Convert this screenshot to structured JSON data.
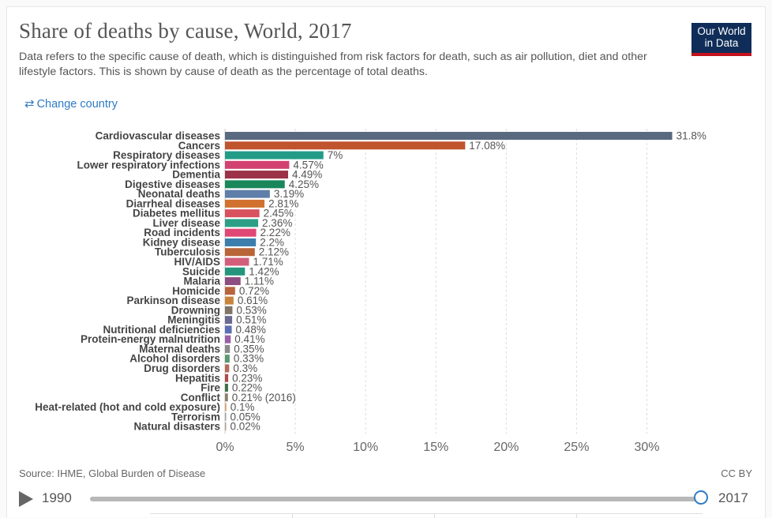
{
  "header": {
    "title": "Share of deaths by cause, World, 2017",
    "subtitle": "Data refers to the specific cause of death, which is distinguished from risk factors for death, such as air pollution, diet and other lifestyle factors. This is shown by cause of death as the percentage of total deaths.",
    "logo_line1": "Our World",
    "logo_line2": "in Data"
  },
  "controls": {
    "change_country_icon": "swap-arrows-icon",
    "change_country_label": "Change country",
    "link_color": "#2e7bc4"
  },
  "footer": {
    "source": "Source: IHME, Global Burden of Disease",
    "license": "CC BY"
  },
  "timeline": {
    "start_year": "1990",
    "end_year": "2017",
    "position": 1.0
  },
  "chart_data": {
    "type": "bar",
    "orientation": "horizontal",
    "title": "Share of deaths by cause, World, 2017",
    "xlim": [
      0,
      32
    ],
    "x_ticks": [
      0,
      5,
      10,
      15,
      20,
      25,
      30
    ],
    "x_tick_labels": [
      "0%",
      "5%",
      "10%",
      "15%",
      "20%",
      "25%",
      "30%"
    ],
    "grid": "vertical dashed",
    "categories": [
      "Cardiovascular diseases",
      "Cancers",
      "Respiratory diseases",
      "Lower respiratory infections",
      "Dementia",
      "Digestive diseases",
      "Neonatal deaths",
      "Diarrheal diseases",
      "Diabetes mellitus",
      "Liver disease",
      "Road incidents",
      "Kidney disease",
      "Tuberculosis",
      "HIV/AIDS",
      "Suicide",
      "Malaria",
      "Homicide",
      "Parkinson disease",
      "Drowning",
      "Meningitis",
      "Nutritional deficiencies",
      "Protein-energy malnutrition",
      "Maternal deaths",
      "Alcohol disorders",
      "Drug disorders",
      "Hepatitis",
      "Fire",
      "Conflict",
      "Heat-related (hot and cold exposure)",
      "Terrorism",
      "Natural disasters"
    ],
    "values": [
      31.8,
      17.08,
      7,
      4.57,
      4.49,
      4.25,
      3.19,
      2.81,
      2.45,
      2.36,
      2.22,
      2.2,
      2.12,
      1.71,
      1.42,
      1.11,
      0.72,
      0.61,
      0.53,
      0.51,
      0.48,
      0.41,
      0.35,
      0.33,
      0.3,
      0.23,
      0.22,
      0.21,
      0.1,
      0.05,
      0.02
    ],
    "value_labels": [
      "31.8%",
      "17.08%",
      "7%",
      "4.57%",
      "4.49%",
      "4.25%",
      "3.19%",
      "2.81%",
      "2.45%",
      "2.36%",
      "2.22%",
      "2.2%",
      "2.12%",
      "1.71%",
      "1.42%",
      "1.11%",
      "0.72%",
      "0.61%",
      "0.53%",
      "0.51%",
      "0.48%",
      "0.41%",
      "0.35%",
      "0.33%",
      "0.3%",
      "0.23%",
      "0.22%",
      "0.21% (2016)",
      "0.1%",
      "0.05%",
      "0.02%"
    ],
    "colors": [
      "#59697f",
      "#c0542d",
      "#249b86",
      "#d2426f",
      "#9b3248",
      "#19875a",
      "#5f7ea9",
      "#d07130",
      "#d9505f",
      "#2c9f86",
      "#e14774",
      "#3c7fad",
      "#b86538",
      "#d25e7c",
      "#25967b",
      "#8e4d81",
      "#b8653e",
      "#c9843c",
      "#7f7466",
      "#6a6a92",
      "#5c6eb3",
      "#9b5fa7",
      "#8a8a8a",
      "#5b9870",
      "#b56a5a",
      "#b04a4a",
      "#3e6f45",
      "#8a7f6a",
      "#d8a070",
      "#a0a0a0",
      "#b0a090"
    ]
  }
}
